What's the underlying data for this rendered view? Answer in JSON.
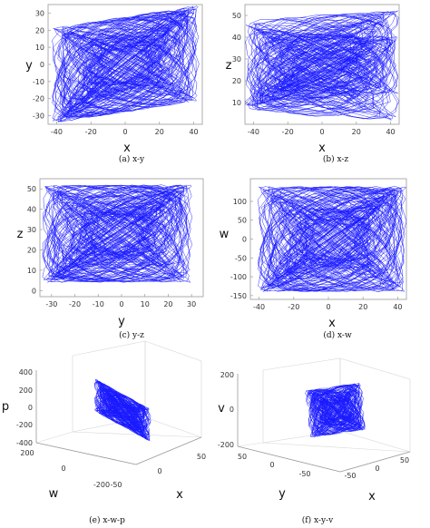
{
  "colors": {
    "trajectory": "#1a1aff",
    "axis": "#9a9a9a"
  },
  "chart_data": [
    {
      "type": "line",
      "id": "a",
      "caption": "(a) x-y",
      "xlabel": "x",
      "ylabel": "y",
      "xlim": [
        -45,
        45
      ],
      "ylim": [
        -35,
        35
      ],
      "xticks": [
        "-40",
        "-20",
        "0",
        "20",
        "40"
      ],
      "yticks": [
        "30",
        "20",
        "10",
        "0",
        "-10",
        "-20",
        "-30"
      ],
      "attractor": {
        "cx": 0,
        "cy": 0,
        "rx": 40,
        "ry": 28
      }
    },
    {
      "type": "line",
      "id": "b",
      "caption": "(b) x-z",
      "xlabel": "x",
      "ylabel": "z",
      "xlim": [
        -45,
        45
      ],
      "ylim": [
        0,
        55
      ],
      "xticks": [
        "-40",
        "-20",
        "0",
        "20",
        "40"
      ],
      "yticks": [
        "50",
        "40",
        "30",
        "20",
        "10"
      ],
      "attractor": {
        "cx": 0,
        "cy": 27,
        "rx": 42,
        "ry": 24
      }
    },
    {
      "type": "line",
      "id": "c",
      "caption": "(c) y-z",
      "xlabel": "y",
      "ylabel": "z",
      "xlim": [
        -35,
        35
      ],
      "ylim": [
        -3,
        55
      ],
      "xticks": [
        "-30",
        "-20",
        "-10",
        "0",
        "10",
        "20",
        "30"
      ],
      "yticks": [
        "50",
        "40",
        "30",
        "20",
        "10",
        "0"
      ],
      "attractor": {
        "cx": -2,
        "cy": 28,
        "rx": 30,
        "ry": 24
      }
    },
    {
      "type": "line",
      "id": "d",
      "caption": "(d) x-w",
      "xlabel": "x",
      "ylabel": "w",
      "xlim": [
        -45,
        45
      ],
      "ylim": [
        -160,
        160
      ],
      "xticks": [
        "-40",
        "-20",
        "0",
        "20",
        "40"
      ],
      "yticks": [
        "100",
        "50",
        "0",
        "-50",
        "-100",
        "-150"
      ],
      "attractor": {
        "cx": 2,
        "cy": 0,
        "rx": 40,
        "ry": 140
      }
    },
    {
      "type": "line",
      "id": "e",
      "caption": "(e) x-w-p",
      "xlabel": "x",
      "ylabel": "w",
      "zlabel": "p",
      "zticks": [
        "400",
        "200",
        "0",
        "-200",
        "-400"
      ],
      "yticks": [
        "200",
        "0",
        "-200"
      ],
      "xticks": [
        "-50",
        "0",
        "50"
      ]
    },
    {
      "type": "line",
      "id": "f",
      "caption": "(f) x-y-v",
      "xlabel": "x",
      "ylabel": "y",
      "zlabel": "v",
      "zticks": [
        "200",
        "0",
        "-200"
      ],
      "yticks": [
        "50",
        "0",
        "-50"
      ],
      "xticks": [
        "-50",
        "0",
        "50"
      ]
    }
  ]
}
